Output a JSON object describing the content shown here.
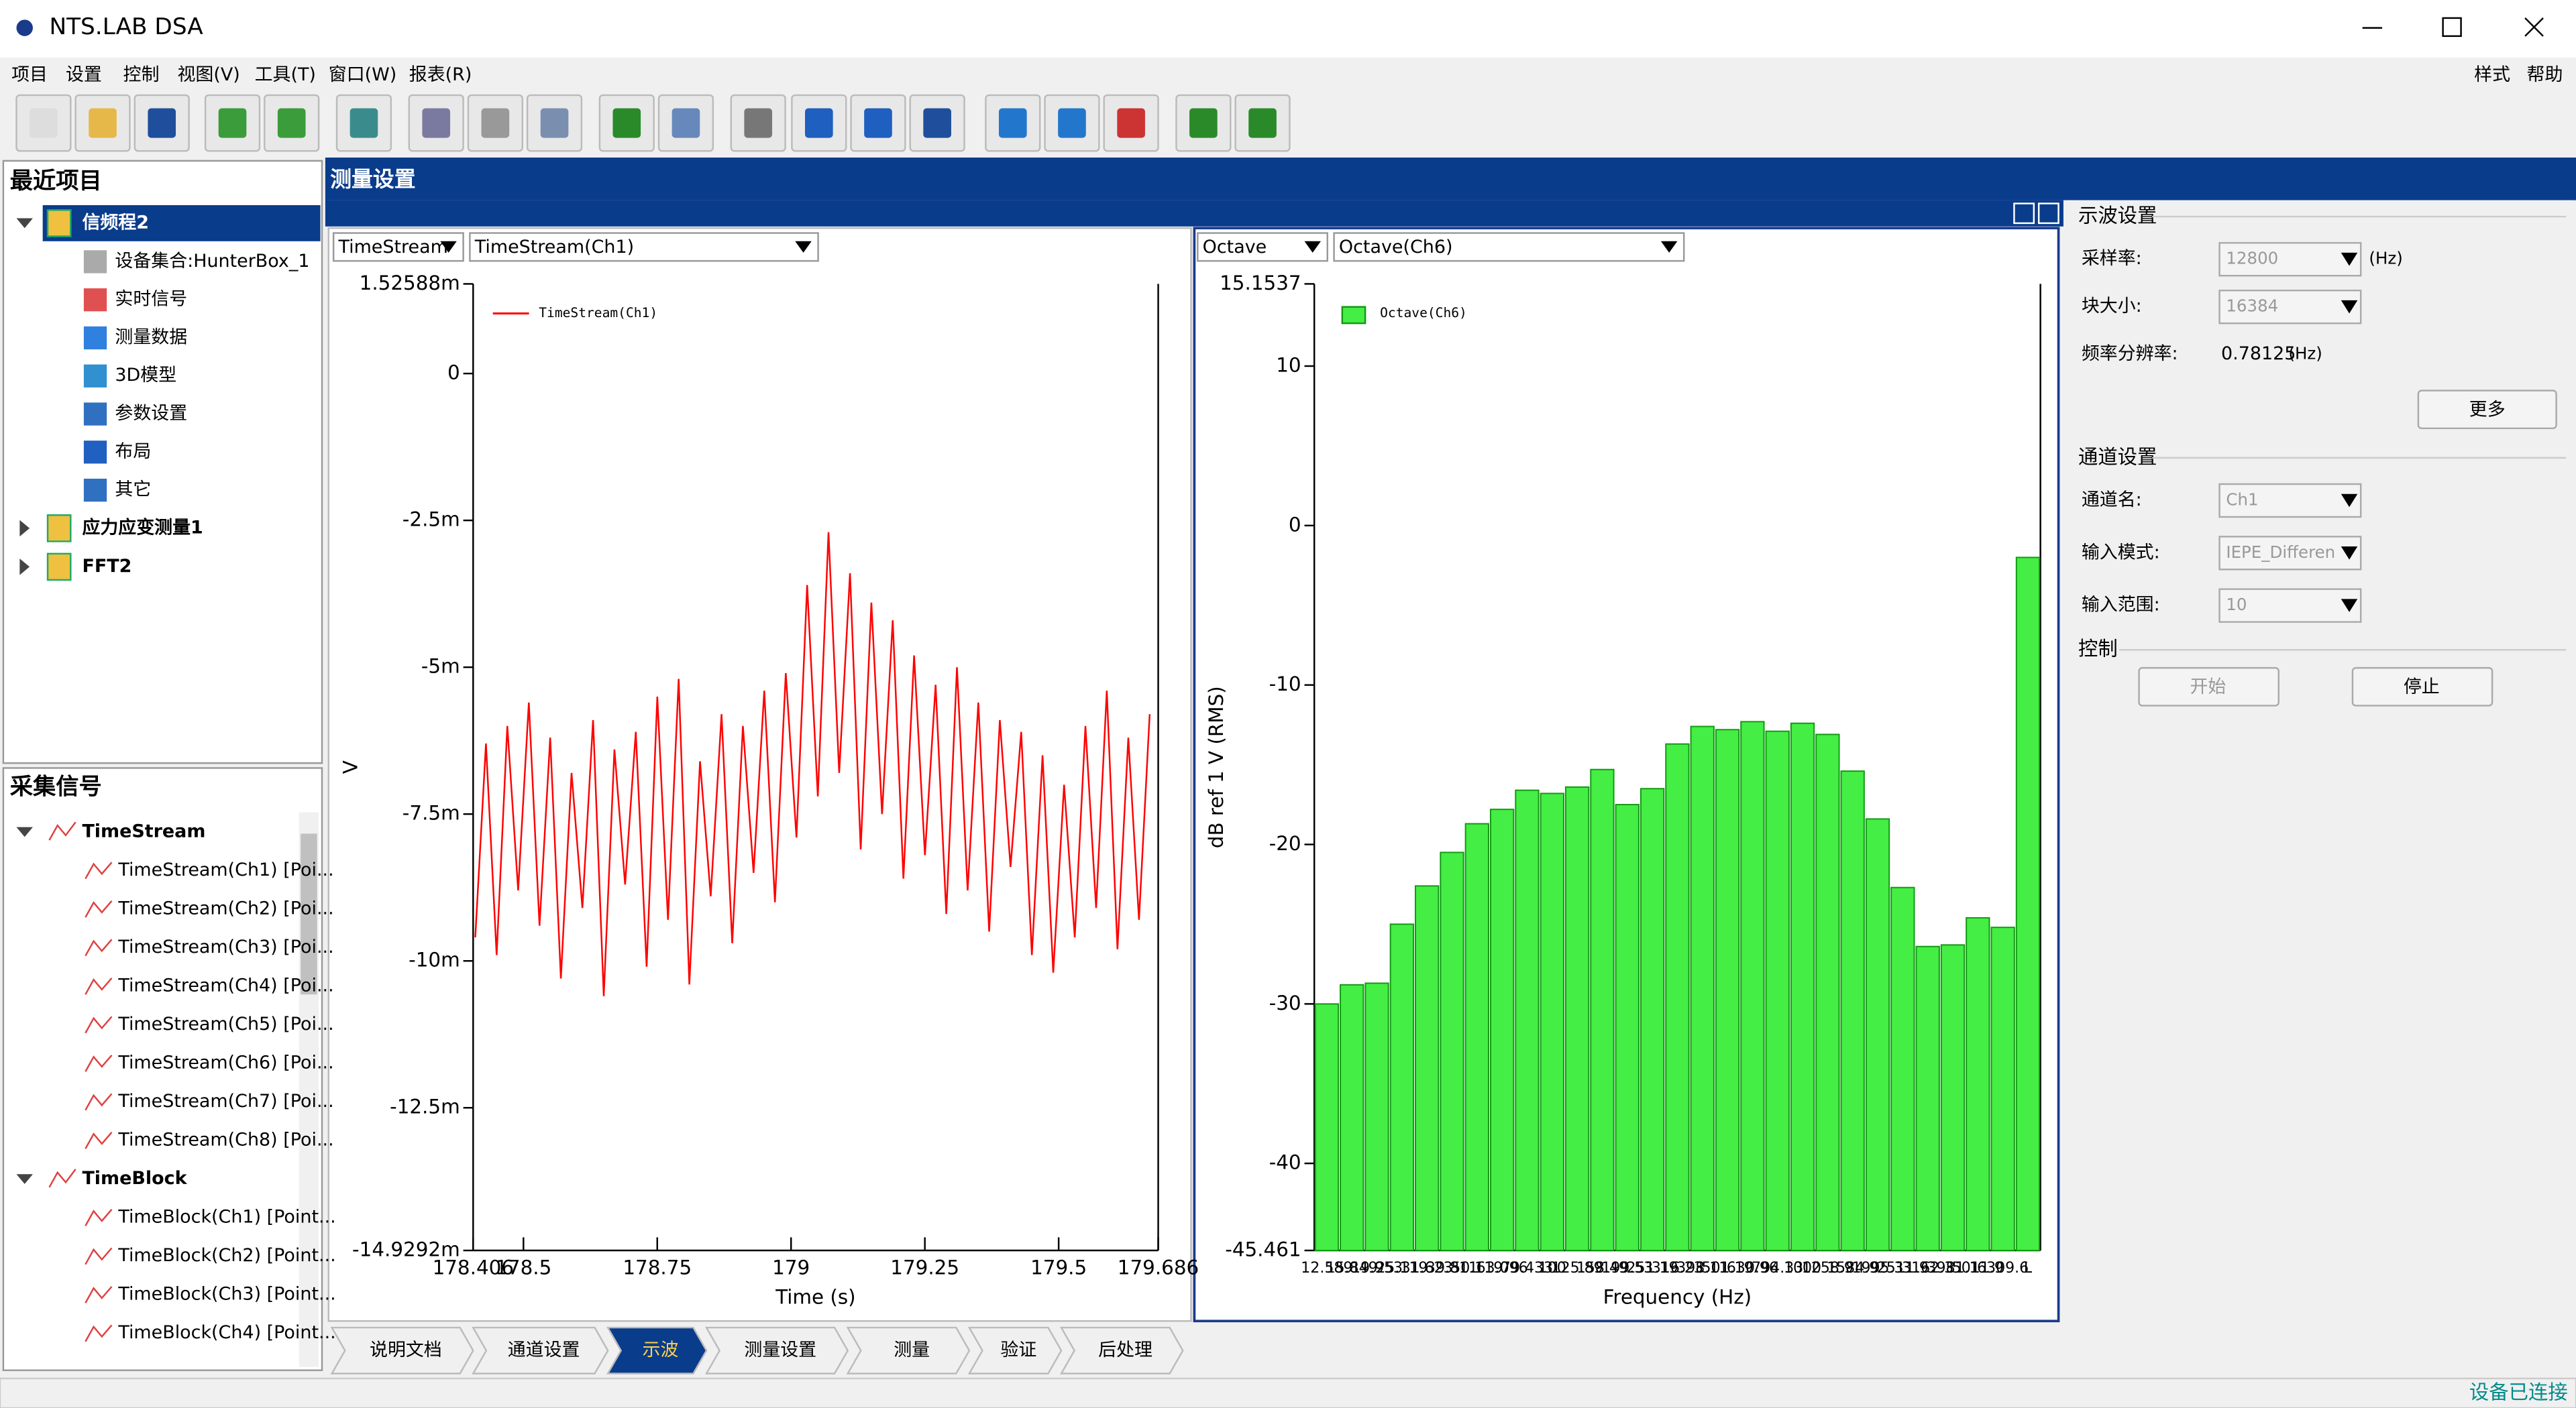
{
  "window_title": "NTS.LAB DSA",
  "menu": [
    "项目",
    "设置",
    "控制",
    "视图(V)",
    "工具(T)",
    "窗口(W)",
    "报表(R)"
  ],
  "menu_right": [
    "样式",
    "帮助"
  ],
  "recent_projects": {
    "title": "最近项目",
    "items": [
      {
        "label": "信频程2",
        "children": [
          "设备集合:HunterBox_1",
          "实时信号",
          "测量数据",
          "3D模型",
          "参数设置",
          "布局",
          "其它"
        ]
      },
      {
        "label": "应力应变测量1"
      },
      {
        "label": "FFT2"
      }
    ]
  },
  "signals": {
    "title": "采集信号",
    "groups": [
      {
        "label": "TimeStream",
        "items": [
          "TimeStream(Ch1) [Poi...",
          "TimeStream(Ch2) [Poi...",
          "TimeStream(Ch3) [Poi...",
          "TimeStream(Ch4) [Poi...",
          "TimeStream(Ch5) [Poi...",
          "TimeStream(Ch6) [Poi...",
          "TimeStream(Ch7) [Poi...",
          "TimeStream(Ch8) [Poi..."
        ]
      },
      {
        "label": "TimeBlock",
        "items": [
          "TimeBlock(Ch1) [Point...",
          "TimeBlock(Ch2) [Point...",
          "TimeBlock(Ch3) [Point...",
          "TimeBlock(Ch4) [Point..."
        ]
      }
    ]
  },
  "workspace_title": "测量设置",
  "selectors": [
    "TimeStream",
    "TimeStream(Ch1)",
    "Octave",
    "Octave(Ch6)"
  ],
  "chart_data": [
    {
      "type": "line",
      "x_label": "Time (s)",
      "y_label": "V",
      "x": [
        178.41,
        178.43,
        178.45,
        178.47,
        178.49,
        178.51,
        178.53,
        178.55,
        178.57,
        178.59,
        178.61,
        178.63,
        178.65,
        178.67,
        178.69,
        178.71,
        178.73,
        178.75,
        178.77,
        178.79,
        178.81,
        178.83,
        178.85,
        178.87,
        178.89,
        178.91,
        178.93,
        178.95,
        178.97,
        178.99,
        179.01,
        179.03,
        179.05,
        179.07,
        179.09,
        179.11,
        179.13,
        179.15,
        179.17,
        179.19,
        179.21,
        179.23,
        179.25,
        179.27,
        179.29,
        179.31,
        179.33,
        179.35,
        179.37,
        179.39,
        179.41,
        179.43,
        179.45,
        179.47,
        179.49,
        179.51,
        179.53,
        179.55,
        179.57,
        179.59,
        179.61,
        179.63,
        179.65,
        179.67
      ],
      "series": [
        {
          "name": "TimeStream(Ch1)",
          "color": "#ff0000",
          "values": [
            -0.0096,
            -0.0063,
            -0.0099,
            -0.006,
            -0.0088,
            -0.0056,
            -0.0094,
            -0.0062,
            -0.0103,
            -0.0068,
            -0.0091,
            -0.0059,
            -0.0106,
            -0.0064,
            -0.0087,
            -0.0061,
            -0.0101,
            -0.0055,
            -0.0093,
            -0.0052,
            -0.0104,
            -0.0066,
            -0.0089,
            -0.0058,
            -0.0097,
            -0.006,
            -0.0085,
            -0.0054,
            -0.009,
            -0.0051,
            -0.0079,
            -0.0036,
            -0.0072,
            -0.0027,
            -0.0068,
            -0.0034,
            -0.0081,
            -0.0039,
            -0.0075,
            -0.0042,
            -0.0086,
            -0.0048,
            -0.0082,
            -0.0053,
            -0.0092,
            -0.005,
            -0.0088,
            -0.0056,
            -0.0095,
            -0.0059,
            -0.0084,
            -0.0061,
            -0.0099,
            -0.0065,
            -0.0102,
            -0.007,
            -0.0096,
            -0.006,
            -0.0091,
            -0.0054,
            -0.0098,
            -0.0062,
            -0.0093,
            -0.0058
          ]
        }
      ],
      "xlim": [
        178.406,
        179.686
      ],
      "xticks": [
        178.406,
        178.5,
        178.75,
        179,
        179.25,
        179.5,
        179.686
      ],
      "ylim": [
        -0.0149292,
        0.00152588
      ],
      "yticks": [
        {
          "value": 0.00152588,
          "label": "1.52588m"
        },
        0,
        {
          "value": -0.0025,
          "label": "-2.5m"
        },
        {
          "value": -0.005,
          "label": "-5m"
        },
        {
          "value": -0.0075,
          "label": "-7.5m"
        },
        {
          "value": -0.01,
          "label": "-10m"
        },
        {
          "value": -0.0125,
          "label": "-12.5m"
        },
        {
          "value": -0.0149292,
          "label": "-14.9292m"
        }
      ],
      "grid": false
    },
    {
      "type": "bar",
      "x_label": "Frequency (Hz)",
      "y_label": "dB ref 1 V (RMS)",
      "categories": [
        "12.589",
        "15.849",
        "19.953",
        "25.119",
        "31.623",
        "39.811",
        "50.119",
        "63.096",
        "79.433",
        "100",
        "125.89",
        "158.49",
        "199.53",
        "251.19",
        "316.23",
        "398.11",
        "501.19",
        "630.96",
        "794.33",
        "1000",
        "1258.9",
        "1584.9",
        "1995.3",
        "2511.9",
        "3162.3",
        "3981.1",
        "5011.9",
        "6309.6",
        "L"
      ],
      "series": [
        {
          "name": "Octave(Ch6)",
          "color": "#44ee44",
          "values": [
            -30,
            -28.8,
            -28.7,
            -25,
            -22.6,
            -20.5,
            -18.7,
            -17.8,
            -16.6,
            -16.8,
            -16.4,
            -15.3,
            -17.5,
            -16.5,
            -13.7,
            -12.6,
            -12.8,
            -12.3,
            -12.9,
            -12.4,
            -13.1,
            -15.4,
            -18.4,
            -22.7,
            -26.4,
            -26.3,
            -24.6,
            -25.2,
            -2
          ]
        }
      ],
      "ylim": [
        -45.461,
        15.1537
      ],
      "yticks": [
        15.1537,
        10,
        0,
        -10,
        -20,
        -30,
        -40,
        -45.461
      ],
      "grid": false
    }
  ],
  "scope_settings": {
    "title": "示波设置",
    "fields": [
      {
        "label": "采样率:",
        "value": "12800",
        "unit": "(Hz)"
      },
      {
        "label": "块大小:",
        "value": "16384"
      },
      {
        "label": "频率分辨率:",
        "value": "0.78125",
        "unit": "(Hz)"
      }
    ],
    "more": "更多"
  },
  "channel_settings": {
    "title": "通道设置",
    "fields": [
      {
        "label": "通道名:",
        "value": "Ch1"
      },
      {
        "label": "输入模式:",
        "value": "IEPE_Differen"
      },
      {
        "label": "输入范围:",
        "value": "10"
      }
    ]
  },
  "control": {
    "title": "控制",
    "buttons": [
      "开始",
      "停止"
    ]
  },
  "tabs": [
    "说明文档",
    "通道设置",
    "示波",
    "测量设置",
    "测量",
    "验证",
    "后处理"
  ],
  "status": "设备已连接"
}
